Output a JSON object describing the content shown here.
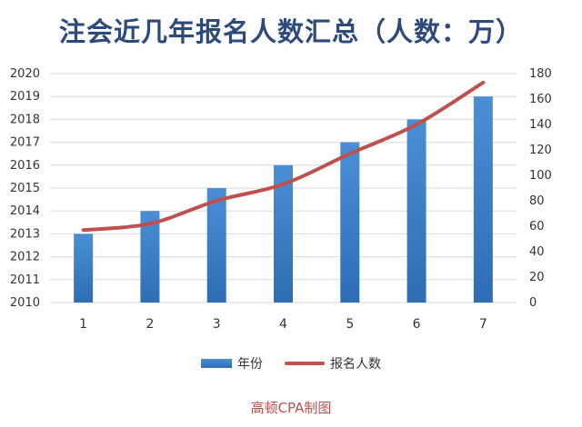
{
  "header": {
    "title": "注会近几年报名人数汇总（人数：万）"
  },
  "footer": {
    "credit": "高顿CPA制图"
  },
  "colors": {
    "bar": "#2e6db4",
    "bar_light": "#4a8fd6",
    "line": "#c0504d",
    "grid": "#d9d9d9",
    "title": "#2d4a7a"
  },
  "chart_data": {
    "type": "bar",
    "categories": [
      "1",
      "2",
      "3",
      "4",
      "5",
      "6",
      "7"
    ],
    "series": [
      {
        "name": "年份",
        "type": "bar",
        "axis": "left",
        "values": [
          2013,
          2014,
          2015,
          2016,
          2017,
          2018,
          2019
        ]
      },
      {
        "name": "报名人数",
        "type": "line",
        "axis": "right",
        "values": [
          57,
          62,
          80,
          93,
          117,
          140,
          173
        ]
      }
    ],
    "y_left": {
      "ylim": [
        2010,
        2020
      ],
      "ticks": [
        "2010",
        "2011",
        "2012",
        "2013",
        "2014",
        "2015",
        "2016",
        "2017",
        "2018",
        "2019",
        "2020"
      ]
    },
    "y_right": {
      "ylim": [
        0,
        180
      ],
      "ticks": [
        "0",
        "20",
        "40",
        "60",
        "80",
        "100",
        "120",
        "140",
        "160",
        "180"
      ]
    },
    "grid": true,
    "legend_position": "bottom"
  }
}
